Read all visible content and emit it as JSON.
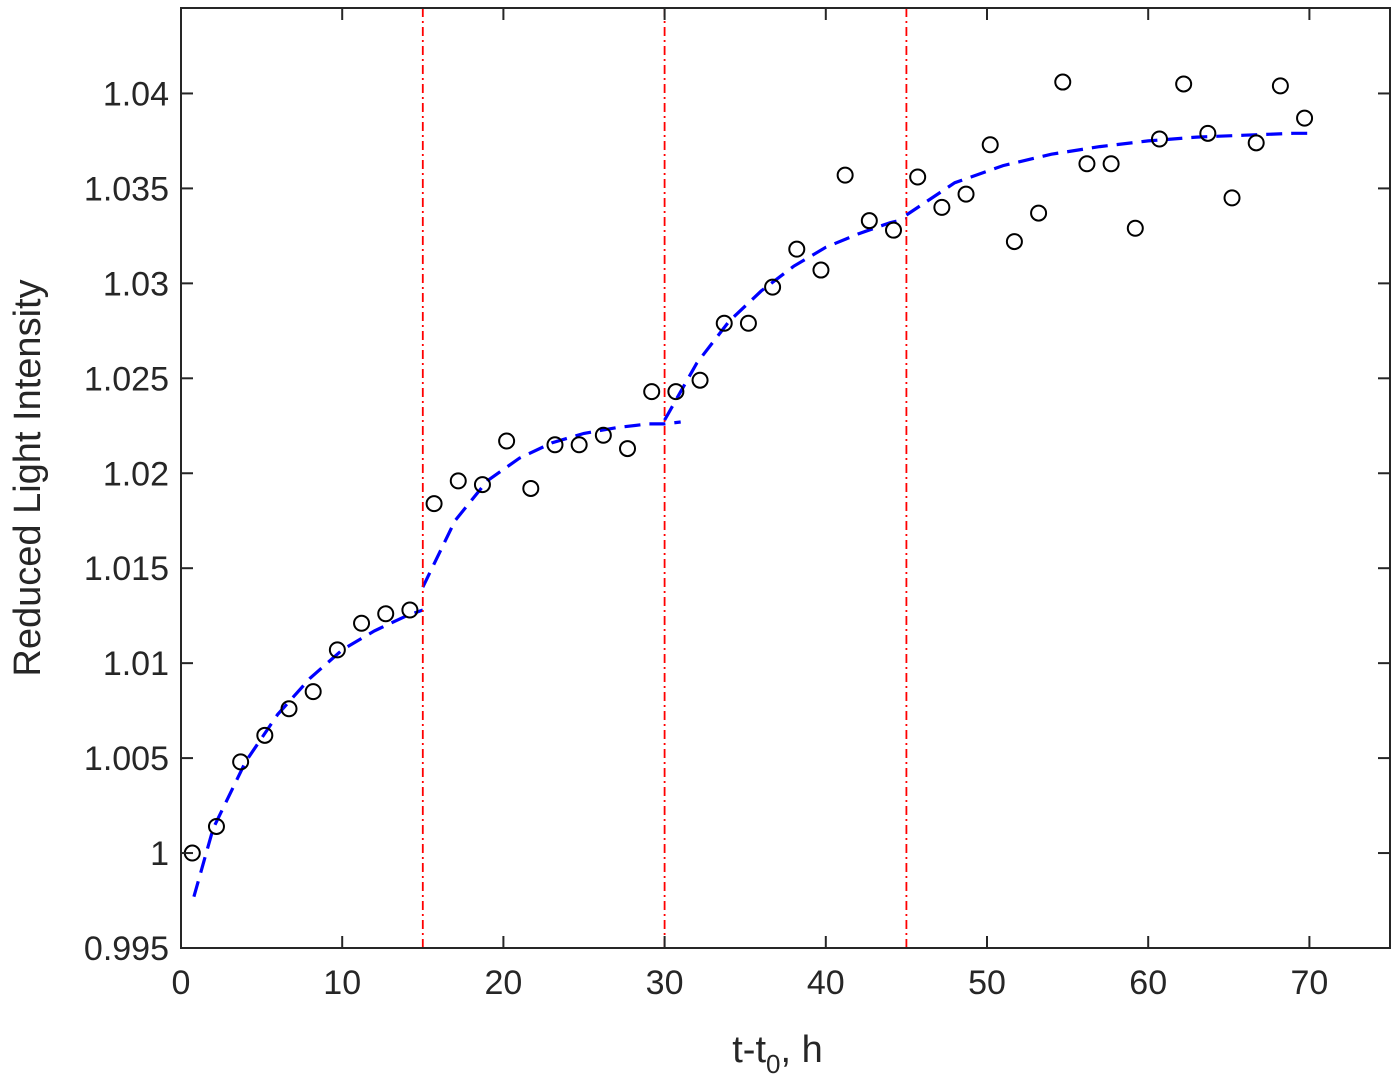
{
  "chart_data": {
    "type": "scatter",
    "title": "",
    "xlabel": {
      "main": "t-t",
      "subscript": "0",
      "suffix": ", h"
    },
    "ylabel": "Reduced Light Intensity",
    "xlim": [
      0,
      75
    ],
    "ylim": [
      0.995,
      1.0445
    ],
    "xticks": [
      0,
      10,
      20,
      30,
      40,
      50,
      60,
      70
    ],
    "xtick_labels": [
      "0",
      "10",
      "20",
      "30",
      "40",
      "50",
      "60",
      "70"
    ],
    "yticks": [
      0.995,
      1.0,
      1.005,
      1.01,
      1.015,
      1.02,
      1.025,
      1.03,
      1.035,
      1.04
    ],
    "ytick_labels": [
      "0.995",
      "1",
      "1.005",
      "1.01",
      "1.015",
      "1.02",
      "1.025",
      "1.03",
      "1.035",
      "1.04"
    ],
    "grid": false,
    "vertical_lines": [
      15,
      30,
      45
    ],
    "colors": {
      "markers": "#000000",
      "fit": "#0000ff",
      "vlines": "#ff0000",
      "axes": "#262626"
    },
    "series": [
      {
        "name": "measured",
        "style": "open-circle",
        "x": [
          0.7,
          2.2,
          3.7,
          5.2,
          6.7,
          8.2,
          9.7,
          11.2,
          12.7,
          14.2,
          15.7,
          17.2,
          18.7,
          20.2,
          21.7,
          23.2,
          24.7,
          26.2,
          27.7,
          29.2,
          30.7,
          32.2,
          33.7,
          35.2,
          36.7,
          38.2,
          39.7,
          41.2,
          42.7,
          44.2,
          45.7,
          47.2,
          48.7,
          50.2,
          51.7,
          53.2,
          54.7,
          56.2,
          57.7,
          59.2,
          60.7,
          62.2,
          63.7,
          65.2,
          66.7,
          68.2,
          69.7
        ],
        "y": [
          1.0,
          1.0014,
          1.0048,
          1.0062,
          1.0076,
          1.0085,
          1.0107,
          1.0121,
          1.0126,
          1.0128,
          1.0184,
          1.0196,
          1.0194,
          1.0217,
          1.0192,
          1.0215,
          1.0215,
          1.022,
          1.0213,
          1.0243,
          1.0243,
          1.0249,
          1.0279,
          1.0279,
          1.0298,
          1.0318,
          1.0307,
          1.0357,
          1.0333,
          1.0328,
          1.0356,
          1.034,
          1.0347,
          1.0373,
          1.0322,
          1.0337,
          1.0406,
          1.0363,
          1.0363,
          1.0329,
          1.0376,
          1.0405,
          1.0379,
          1.0345,
          1.0374,
          1.0404,
          1.0387
        ]
      },
      {
        "name": "fit",
        "style": "dashed-line",
        "segments": [
          {
            "x": [
              0.8,
              2,
              4,
              6,
              8,
              10,
              12,
              14,
              15
            ],
            "y": [
              0.9977,
              1.0013,
              1.0048,
              1.0073,
              1.0092,
              1.0107,
              1.0117,
              1.0125,
              1.0128
            ]
          },
          {
            "x": [
              15,
              17,
              19,
              21,
              23,
              25,
              27,
              29,
              30,
              31
            ],
            "y": [
              1.014,
              1.0175,
              1.0196,
              1.0208,
              1.0216,
              1.0221,
              1.0224,
              1.0226,
              1.0226,
              1.0227
            ]
          },
          {
            "x": [
              30,
              32,
              34,
              36,
              38,
              40,
              42,
              44,
              45
            ],
            "y": [
              1.0228,
              1.0258,
              1.028,
              1.0296,
              1.0309,
              1.0319,
              1.0326,
              1.0332,
              1.0334
            ]
          },
          {
            "x": [
              45,
              48,
              51,
              54,
              57,
              60,
              63,
              66,
              69,
              70
            ],
            "y": [
              1.0336,
              1.0353,
              1.0362,
              1.0368,
              1.0372,
              1.0375,
              1.0377,
              1.0378,
              1.0379,
              1.0379
            ]
          }
        ]
      }
    ]
  }
}
